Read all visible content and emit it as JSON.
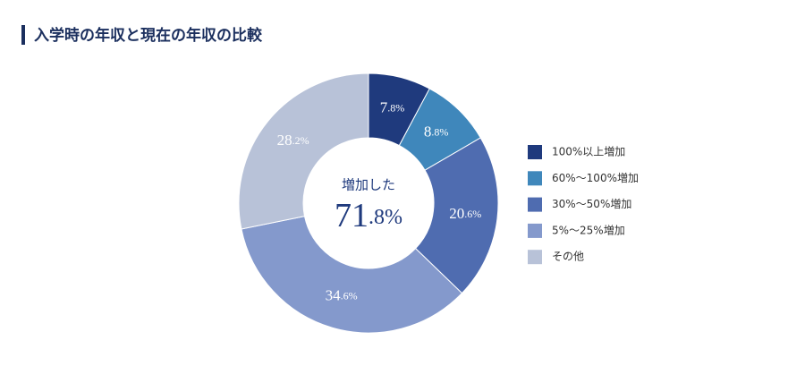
{
  "chart_data": {
    "type": "pie",
    "title": "入学時の年収と現在の年収の比較",
    "categories": [
      "100%以上増加",
      "60%～100%増加",
      "30%～50%増加",
      "5%～25%増加",
      "その他"
    ],
    "values": [
      7.8,
      8.8,
      20.6,
      34.6,
      28.2
    ],
    "value_labels": [
      "7.8%",
      "8.8%",
      "20.6%",
      "34.6%",
      "28.2%"
    ],
    "colors": [
      "#1f3a7d",
      "#3f87bb",
      "#4f6cb0",
      "#8499cc",
      "#b8c2d8"
    ],
    "center_title": "増加した",
    "center_value": "71.8%",
    "legend": "right"
  }
}
